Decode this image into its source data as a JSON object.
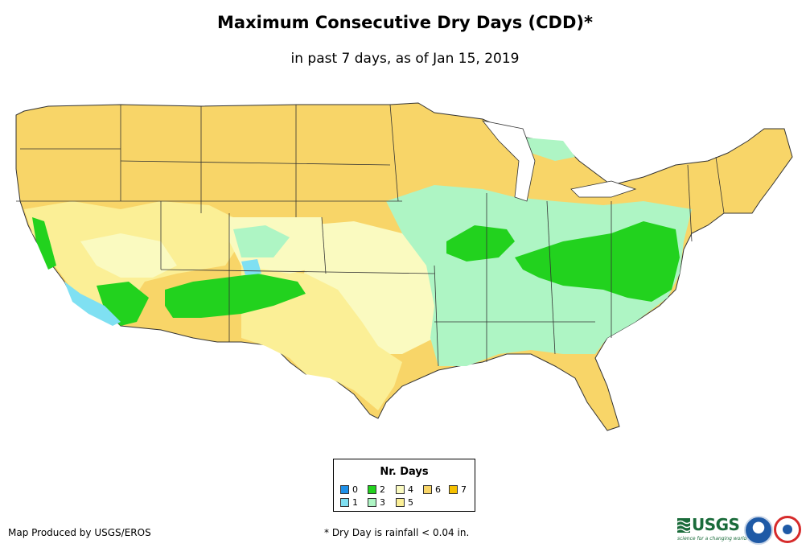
{
  "title": "Maximum Consecutive Dry Days (CDD)*",
  "subtitle": "in past 7 days, as of Jan 15, 2019",
  "legend": {
    "title": "Nr. Days",
    "items": [
      {
        "label": "0",
        "color": "#1e90e8"
      },
      {
        "label": "1",
        "color": "#7fe0f2"
      },
      {
        "label": "2",
        "color": "#22d21e"
      },
      {
        "label": "3",
        "color": "#aef5c4"
      },
      {
        "label": "4",
        "color": "#fafac0"
      },
      {
        "label": "5",
        "color": "#fbef96"
      },
      {
        "label": "6",
        "color": "#f8d568"
      },
      {
        "label": "7",
        "color": "#f5c000"
      }
    ]
  },
  "footer": {
    "producer": "Map Produced by USGS/EROS",
    "note": "* Dry Day is rainfall < 0.04 in."
  },
  "logos": {
    "usgs_text": "USGS",
    "usgs_tagline": "science for a changing world",
    "noaa_icon": "noaa-logo-icon",
    "nws_icon": "nws-logo-icon"
  },
  "colors": {
    "day3": "#aef5c4",
    "day2": "#22d21e",
    "day1": "#7fe0f2",
    "day4": "#fafac0",
    "day5": "#fbef96",
    "day6": "#f8d568",
    "border": "#333333"
  }
}
